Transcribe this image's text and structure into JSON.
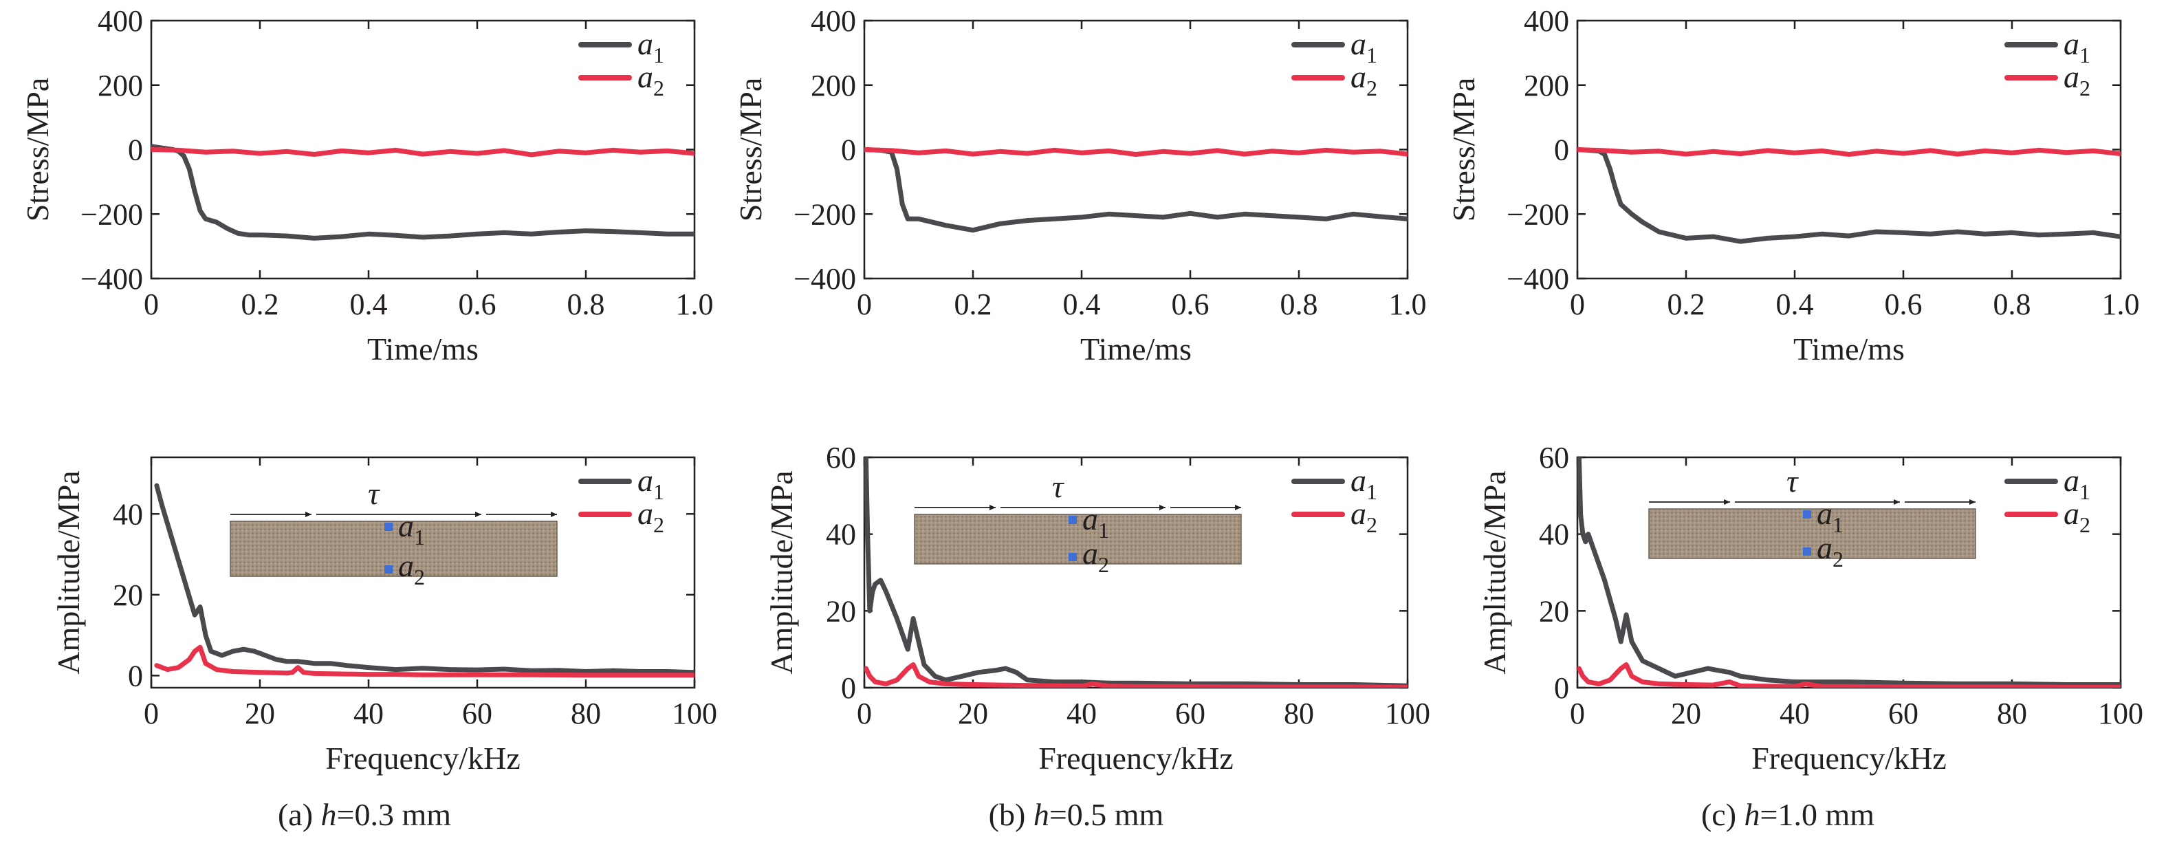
{
  "colors": {
    "a1": "#4a4a4e",
    "a2": "#e8314a",
    "axis": "#231f20",
    "concrete": "#a49480",
    "marker": "#3d6fd6"
  },
  "panels": [
    {
      "caption_prefix": "(a) ",
      "caption_var": "h",
      "caption_value": "=0.3 mm",
      "inset_label": "τ"
    },
    {
      "caption_prefix": "(b) ",
      "caption_var": "h",
      "caption_value": "=0.5 mm",
      "inset_label": "τ"
    },
    {
      "caption_prefix": "(c) ",
      "caption_var": "h",
      "caption_value": "=1.0 mm",
      "inset_label": "τ"
    }
  ],
  "chart_data": [
    {
      "id": "stress-a",
      "type": "line",
      "xlabel": "Time/ms",
      "ylabel": "Stress/MPa",
      "xlim": [
        0,
        1.0
      ],
      "ylim": [
        -400,
        400
      ],
      "xticks": [
        0,
        0.2,
        0.4,
        0.6,
        0.8,
        1.0
      ],
      "xticklabels": [
        "0",
        "0.2",
        "0.4",
        "0.6",
        "0.8",
        "1.0"
      ],
      "yticks": [
        400,
        200,
        0,
        -200,
        -400
      ],
      "yticklabels": [
        "400",
        "200",
        "0",
        "−200",
        "−400"
      ],
      "legend": "top-right",
      "series": [
        {
          "name": "a1",
          "label_main": "a",
          "label_sub": "1",
          "x": [
            0,
            0.02,
            0.04,
            0.05,
            0.06,
            0.07,
            0.08,
            0.09,
            0.1,
            0.12,
            0.14,
            0.16,
            0.18,
            0.2,
            0.25,
            0.3,
            0.35,
            0.4,
            0.45,
            0.5,
            0.55,
            0.6,
            0.65,
            0.7,
            0.75,
            0.8,
            0.85,
            0.9,
            0.95,
            1.0
          ],
          "y": [
            10,
            5,
            0,
            -5,
            -20,
            -60,
            -130,
            -190,
            -215,
            -225,
            -245,
            -260,
            -265,
            -265,
            -268,
            -275,
            -270,
            -262,
            -266,
            -272,
            -268,
            -262,
            -258,
            -262,
            -256,
            -252,
            -254,
            -258,
            -262,
            -262
          ]
        },
        {
          "name": "a2",
          "label_main": "a",
          "label_sub": "2",
          "x": [
            0,
            0.05,
            0.1,
            0.15,
            0.2,
            0.25,
            0.3,
            0.35,
            0.4,
            0.45,
            0.5,
            0.55,
            0.6,
            0.65,
            0.7,
            0.75,
            0.8,
            0.85,
            0.9,
            0.95,
            1.0
          ],
          "y": [
            0,
            -2,
            -8,
            -5,
            -12,
            -6,
            -15,
            -4,
            -10,
            -2,
            -14,
            -6,
            -12,
            -3,
            -16,
            -5,
            -10,
            -2,
            -8,
            -4,
            -12
          ]
        }
      ]
    },
    {
      "id": "stress-b",
      "type": "line",
      "xlabel": "Time/ms",
      "ylabel": "Stress/MPa",
      "xlim": [
        0,
        1.0
      ],
      "ylim": [
        -400,
        400
      ],
      "xticks": [
        0,
        0.2,
        0.4,
        0.6,
        0.8,
        1.0
      ],
      "xticklabels": [
        "0",
        "0.2",
        "0.4",
        "0.6",
        "0.8",
        "1.0"
      ],
      "yticks": [
        400,
        200,
        0,
        -200,
        -400
      ],
      "yticklabels": [
        "400",
        "200",
        "0",
        "−200",
        "−400"
      ],
      "legend": "top-right",
      "series": [
        {
          "name": "a1",
          "label_main": "a",
          "label_sub": "1",
          "x": [
            0,
            0.03,
            0.05,
            0.06,
            0.07,
            0.08,
            0.1,
            0.15,
            0.2,
            0.25,
            0.3,
            0.35,
            0.4,
            0.45,
            0.5,
            0.55,
            0.6,
            0.65,
            0.7,
            0.75,
            0.8,
            0.85,
            0.9,
            0.95,
            1.0
          ],
          "y": [
            0,
            -2,
            -8,
            -60,
            -170,
            -215,
            -215,
            -235,
            -250,
            -230,
            -220,
            -215,
            -210,
            -200,
            -205,
            -210,
            -198,
            -210,
            -200,
            -205,
            -210,
            -215,
            -200,
            -208,
            -215
          ]
        },
        {
          "name": "a2",
          "label_main": "a",
          "label_sub": "2",
          "x": [
            0,
            0.05,
            0.1,
            0.15,
            0.2,
            0.25,
            0.3,
            0.35,
            0.4,
            0.45,
            0.5,
            0.55,
            0.6,
            0.65,
            0.7,
            0.75,
            0.8,
            0.85,
            0.9,
            0.95,
            1.0
          ],
          "y": [
            0,
            -3,
            -10,
            -4,
            -14,
            -6,
            -12,
            -2,
            -10,
            -4,
            -15,
            -6,
            -12,
            -3,
            -14,
            -5,
            -10,
            -2,
            -8,
            -5,
            -14
          ]
        }
      ]
    },
    {
      "id": "stress-c",
      "type": "line",
      "xlabel": "Time/ms",
      "ylabel": "Stress/MPa",
      "xlim": [
        0,
        1.0
      ],
      "ylim": [
        -400,
        400
      ],
      "xticks": [
        0,
        0.2,
        0.4,
        0.6,
        0.8,
        1.0
      ],
      "xticklabels": [
        "0",
        "0.2",
        "0.4",
        "0.6",
        "0.8",
        "1.0"
      ],
      "yticks": [
        400,
        200,
        0,
        -200,
        -400
      ],
      "yticklabels": [
        "400",
        "200",
        "0",
        "−200",
        "−400"
      ],
      "legend": "top-right",
      "series": [
        {
          "name": "a1",
          "label_main": "a",
          "label_sub": "1",
          "x": [
            0,
            0.02,
            0.04,
            0.05,
            0.06,
            0.07,
            0.08,
            0.1,
            0.12,
            0.15,
            0.2,
            0.25,
            0.3,
            0.35,
            0.4,
            0.45,
            0.5,
            0.55,
            0.6,
            0.65,
            0.7,
            0.75,
            0.8,
            0.85,
            0.9,
            0.95,
            1.0
          ],
          "y": [
            0,
            -2,
            -5,
            -15,
            -60,
            -120,
            -170,
            -200,
            -225,
            -255,
            -275,
            -270,
            -285,
            -275,
            -270,
            -262,
            -268,
            -255,
            -258,
            -262,
            -255,
            -262,
            -258,
            -265,
            -262,
            -258,
            -270
          ]
        },
        {
          "name": "a2",
          "label_main": "a",
          "label_sub": "2",
          "x": [
            0,
            0.05,
            0.1,
            0.15,
            0.2,
            0.25,
            0.3,
            0.35,
            0.4,
            0.45,
            0.5,
            0.55,
            0.6,
            0.65,
            0.7,
            0.75,
            0.8,
            0.85,
            0.9,
            0.95,
            1.0
          ],
          "y": [
            0,
            -3,
            -8,
            -5,
            -14,
            -6,
            -13,
            -3,
            -10,
            -4,
            -15,
            -5,
            -12,
            -3,
            -14,
            -4,
            -10,
            -2,
            -9,
            -4,
            -13
          ]
        }
      ]
    },
    {
      "id": "amp-a",
      "type": "line",
      "xlabel": "Frequency/kHz",
      "ylabel": "Amplitude/MPa",
      "xlim": [
        0,
        100
      ],
      "ylim": [
        -3,
        54
      ],
      "xticks": [
        0,
        20,
        40,
        60,
        80,
        100
      ],
      "xticklabels": [
        "0",
        "20",
        "40",
        "60",
        "80",
        "100"
      ],
      "yticks": [
        0,
        20,
        40
      ],
      "yticklabels": [
        "0",
        "20",
        "40"
      ],
      "legend": "top-right",
      "series": [
        {
          "name": "a1",
          "label_main": "a",
          "label_sub": "1",
          "x": [
            1,
            2,
            4,
            6,
            8,
            9,
            10,
            11,
            13,
            15,
            17,
            19,
            21,
            23,
            25,
            27,
            30,
            33,
            36,
            40,
            45,
            50,
            55,
            60,
            65,
            70,
            75,
            80,
            85,
            90,
            95,
            100
          ],
          "y": [
            47,
            42,
            33,
            24,
            15,
            17,
            10,
            6,
            5,
            6,
            6.5,
            6,
            5,
            4,
            3.5,
            3.5,
            3,
            3,
            2.5,
            2,
            1.5,
            1.8,
            1.5,
            1.4,
            1.6,
            1.2,
            1.3,
            1.0,
            1.2,
            1.0,
            1.0,
            0.8
          ]
        },
        {
          "name": "a2",
          "label_main": "a",
          "label_sub": "2",
          "x": [
            1,
            3,
            5,
            7,
            8,
            9,
            10,
            12,
            15,
            20,
            25,
            26,
            27,
            28,
            30,
            35,
            40,
            45,
            50,
            60,
            70,
            80,
            90,
            100
          ],
          "y": [
            2.5,
            1.5,
            2,
            4,
            6,
            7,
            3,
            1.5,
            1,
            0.8,
            0.6,
            0.8,
            2,
            0.8,
            0.5,
            0.4,
            0.3,
            0.3,
            0.2,
            0.2,
            0.2,
            0.1,
            0.1,
            0.1
          ]
        }
      ]
    },
    {
      "id": "amp-b",
      "type": "line",
      "xlabel": "Frequency/kHz",
      "ylabel": "Amplitude/MPa",
      "xlim": [
        0,
        100
      ],
      "ylim": [
        0,
        60
      ],
      "xticks": [
        0,
        20,
        40,
        60,
        80,
        100
      ],
      "xticklabels": [
        "0",
        "20",
        "40",
        "60",
        "80",
        "100"
      ],
      "yticks": [
        0,
        20,
        40,
        60
      ],
      "yticklabels": [
        "0",
        "20",
        "40",
        "60"
      ],
      "legend": "top-right",
      "series": [
        {
          "name": "a1",
          "label_main": "a",
          "label_sub": "1",
          "x": [
            0.3,
            0.6,
            1,
            1.5,
            2,
            3,
            4,
            6,
            8,
            9,
            10,
            11,
            13,
            15,
            18,
            21,
            24,
            26,
            28,
            30,
            35,
            40,
            45,
            50,
            60,
            70,
            80,
            90,
            100
          ],
          "y": [
            60,
            40,
            20,
            25,
            27,
            28,
            25,
            18,
            10,
            18,
            12,
            6,
            3,
            2,
            3,
            4,
            4.5,
            5,
            4,
            2,
            1.5,
            1.5,
            1.2,
            1.2,
            1.0,
            1.0,
            0.8,
            0.8,
            0.5
          ]
        },
        {
          "name": "a2",
          "label_main": "a",
          "label_sub": "2",
          "x": [
            0.3,
            1,
            2,
            4,
            6,
            8,
            9,
            10,
            12,
            15,
            20,
            25,
            30,
            35,
            40,
            42,
            45,
            50,
            60,
            70,
            80,
            90,
            100
          ],
          "y": [
            5,
            3,
            1.5,
            1,
            2,
            5,
            6,
            3,
            1.5,
            1,
            0.8,
            0.7,
            0.6,
            0.5,
            0.4,
            1,
            0.4,
            0.3,
            0.3,
            0.2,
            0.2,
            0.2,
            0.1
          ]
        }
      ]
    },
    {
      "id": "amp-c",
      "type": "line",
      "xlabel": "Frequency/kHz",
      "ylabel": "Amplitude/MPa",
      "xlim": [
        0,
        100
      ],
      "ylim": [
        0,
        60
      ],
      "xticks": [
        0,
        20,
        40,
        60,
        80,
        100
      ],
      "xticklabels": [
        "0",
        "20",
        "40",
        "60",
        "80",
        "100"
      ],
      "yticks": [
        0,
        20,
        40,
        60
      ],
      "yticklabels": [
        "0",
        "20",
        "40",
        "60"
      ],
      "legend": "top-right",
      "series": [
        {
          "name": "a1",
          "label_main": "a",
          "label_sub": "1",
          "x": [
            0.3,
            0.6,
            1,
            1.5,
            2,
            3,
            5,
            7,
            8,
            9,
            10,
            12,
            15,
            18,
            21,
            24,
            26,
            28,
            30,
            35,
            40,
            45,
            50,
            60,
            70,
            80,
            90,
            100
          ],
          "y": [
            60,
            45,
            40,
            38,
            40,
            36,
            28,
            18,
            12,
            19,
            12,
            7,
            5,
            3,
            4,
            5,
            4.5,
            4,
            3,
            2,
            1.5,
            1.5,
            1.5,
            1.2,
            1.0,
            1.0,
            0.8,
            0.8
          ]
        },
        {
          "name": "a2",
          "label_main": "a",
          "label_sub": "2",
          "x": [
            0.3,
            1,
            2,
            4,
            6,
            8,
            9,
            10,
            12,
            15,
            20,
            25,
            28,
            30,
            35,
            40,
            42,
            45,
            50,
            60,
            70,
            80,
            90,
            100
          ],
          "y": [
            5,
            3,
            1.5,
            1,
            2,
            5,
            6,
            3,
            1.5,
            1,
            0.8,
            0.7,
            1.5,
            0.5,
            0.4,
            0.3,
            1,
            0.3,
            0.3,
            0.2,
            0.2,
            0.2,
            0.1,
            0.1
          ]
        }
      ]
    }
  ]
}
